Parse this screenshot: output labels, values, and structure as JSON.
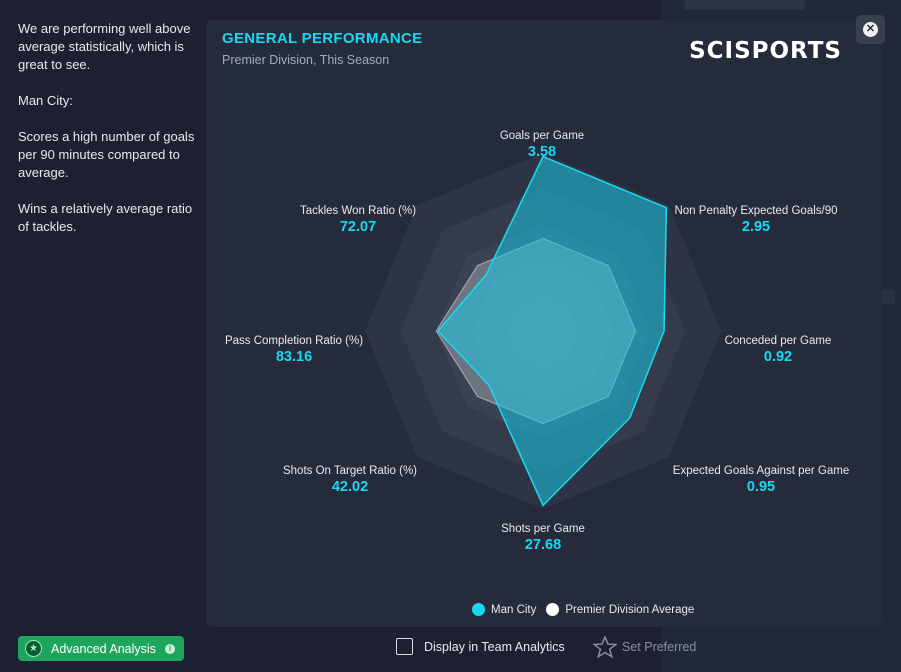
{
  "summary": {
    "intro": "We are performing well above average statistically, which is great to see.",
    "team": "Man City:",
    "point1": "Scores a high number of goals per 90 minutes compared to average.",
    "point2": "Wins a relatively average ratio of tackles."
  },
  "panel": {
    "title": "GENERAL PERFORMANCE",
    "subtitle": "Premier Division, This Season",
    "logo": "SCISPORTS"
  },
  "close": {
    "icon": "close-icon"
  },
  "chart_data": {
    "type": "radar",
    "axes": [
      {
        "label": "Goals per Game",
        "value": "3.58"
      },
      {
        "label": "Non Penalty Expected Goals/90",
        "value": "2.95"
      },
      {
        "label": "Conceded per Game",
        "value": "0.92"
      },
      {
        "label": "Expected Goals Against per Game",
        "value": "0.95"
      },
      {
        "label": "Shots per Game",
        "value": "27.68"
      },
      {
        "label": "Shots On Target Ratio (%)",
        "value": "42.02"
      },
      {
        "label": "Pass Completion Ratio (%)",
        "value": "83.16"
      },
      {
        "label": "Tackles Won Ratio (%)",
        "value": "72.07"
      }
    ],
    "series": [
      {
        "name": "Man City",
        "color": "#19d9f0",
        "normalized": [
          0.98,
          0.98,
          0.68,
          0.69,
          0.98,
          0.43,
          0.59,
          0.45
        ]
      },
      {
        "name": "Premier Division Average",
        "color": "#ffffff",
        "normalized": [
          0.52,
          0.52,
          0.52,
          0.52,
          0.52,
          0.52,
          0.6,
          0.52
        ]
      }
    ],
    "rings": 5
  },
  "legend": {
    "man_city": "Man City",
    "average": "Premier Division Average",
    "man_city_color": "#19d9f0",
    "average_color": "#ffffff"
  },
  "footer": {
    "advanced_analysis": "Advanced Analysis",
    "display_team_analytics": "Display in Team Analytics",
    "set_preferred": "Set Preferred"
  }
}
